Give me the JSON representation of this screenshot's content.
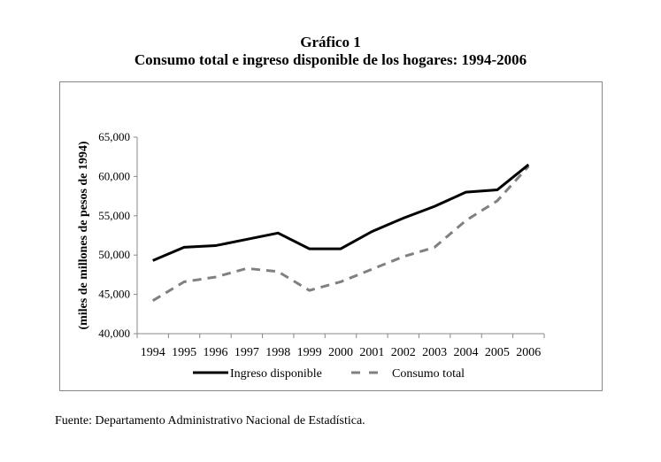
{
  "title": "Gráfico 1",
  "subtitle": "Consumo total e ingreso disponible de los hogares: 1994-2006",
  "source": "Fuente: Departamento Administrativo Nacional de Estadística.",
  "chart_data": {
    "type": "line",
    "title": "Gráfico 1",
    "subtitle": "Consumo total e ingreso disponible de los hogares: 1994-2006",
    "xlabel": "",
    "ylabel": "(miles de millones de pesos de 1994)",
    "categories": [
      "1994",
      "1995",
      "1996",
      "1997",
      "1998",
      "1999",
      "2000",
      "2001",
      "2002",
      "2003",
      "2004",
      "2005",
      "2006"
    ],
    "yticks": [
      "40,000",
      "45,000",
      "50,000",
      "55,000",
      "60,000",
      "65,000"
    ],
    "ylim": [
      40000,
      65000
    ],
    "grid": false,
    "legend": "bottom",
    "series": [
      {
        "name": "Ingreso disponible",
        "color": "#000000",
        "style": "solid",
        "values": [
          49300,
          51000,
          51200,
          52000,
          52800,
          50800,
          50800,
          53000,
          54700,
          56200,
          58000,
          58300,
          61500
        ]
      },
      {
        "name": "Consumo total",
        "color": "#808080",
        "style": "dashed",
        "values": [
          44200,
          46600,
          47200,
          48300,
          47900,
          45500,
          46600,
          48200,
          49800,
          51000,
          54400,
          56900,
          61300
        ]
      }
    ]
  }
}
